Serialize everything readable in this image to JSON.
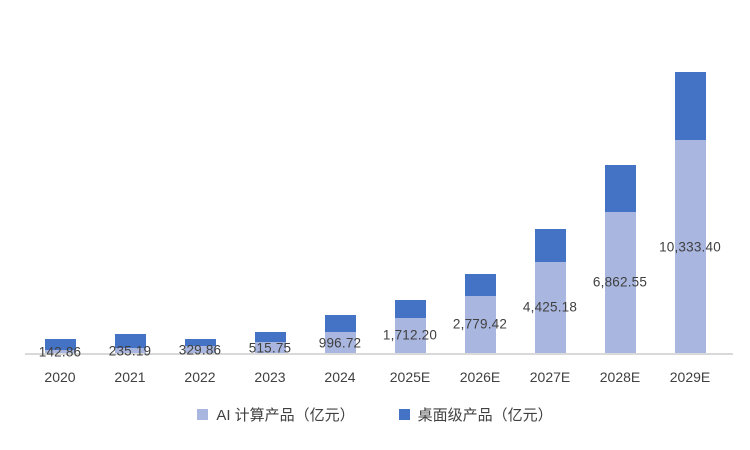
{
  "chart_data": {
    "type": "bar",
    "stacked": true,
    "title": "",
    "xlabel": "",
    "ylabel": "",
    "grid": false,
    "legend_position": "bottom",
    "categories": [
      "2020",
      "2021",
      "2022",
      "2023",
      "2024",
      "2025E",
      "2026E",
      "2027E",
      "2028E",
      "2029E"
    ],
    "series": [
      {
        "name": "AI 计算产品（亿元）",
        "color": "#a9b6df",
        "values": [
          142.86,
          235.19,
          329.86,
          515.75,
          996.72,
          1712.2,
          2779.42,
          4425.18,
          6862.55,
          10333.4
        ],
        "data_labels": [
          "142.86",
          "235.19",
          "329.86",
          "515.75",
          "996.72",
          "1,712.20",
          "2,779.42",
          "4,425.18",
          "6,862.55",
          "10,333.40"
        ]
      },
      {
        "name": "桌面级产品（亿元）",
        "color": "#4472c4",
        "values": [
          540,
          680,
          330,
          500,
          850,
          870,
          1070,
          1600,
          2280,
          3300
        ],
        "values_note": "unlabeled in chart; estimated from bar segment heights"
      }
    ],
    "axis": {
      "ylim": [
        0,
        11600
      ],
      "baseline_color": "#d9d9d9",
      "label_color": "#404040"
    }
  }
}
